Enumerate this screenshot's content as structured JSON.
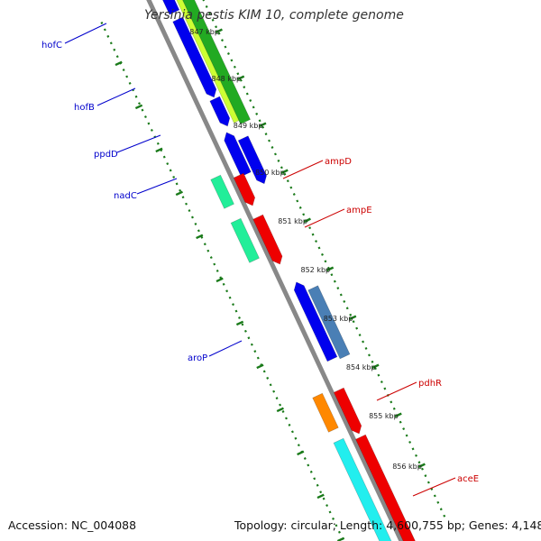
{
  "title": "Yersinia pestis KIM 10, complete genome",
  "footer": {
    "accession": "Accession: NC_004088",
    "summary": "Topology: circular; Length: 4,600,755 bp; Genes: 4,148"
  },
  "scale_labels": [
    "847 kbp",
    "848 kbp",
    "849 kbp",
    "850 kbp",
    "851 kbp",
    "852 kbp",
    "853 kbp",
    "854 kbp",
    "855 kbp",
    "856 kbp"
  ],
  "genes_reverse": [
    {
      "name": "hofC",
      "color": "#0000cc"
    },
    {
      "name": "hofB",
      "color": "#0000cc"
    },
    {
      "name": "ppdD",
      "color": "#0000cc"
    },
    {
      "name": "nadC",
      "color": "#0000cc"
    },
    {
      "name": "aroP",
      "color": "#0000cc"
    }
  ],
  "genes_forward": [
    {
      "name": "ampD",
      "color": "#cc0000"
    },
    {
      "name": "ampE",
      "color": "#cc0000"
    },
    {
      "name": "pdhR",
      "color": "#cc0000"
    },
    {
      "name": "aceE",
      "color": "#cc0000"
    }
  ],
  "colors": {
    "backbone": "#888888",
    "tick": "#1a7a1a",
    "cds_blue": "#0000ee",
    "cds_red": "#ee0000",
    "cds_teal": "#22ee99",
    "cds_orange": "#ff8800",
    "cds_cyan": "#22eeee",
    "cds_steel": "#4a7fb5",
    "green_band": "#22aa22",
    "yellow_band": "#ccff33"
  }
}
